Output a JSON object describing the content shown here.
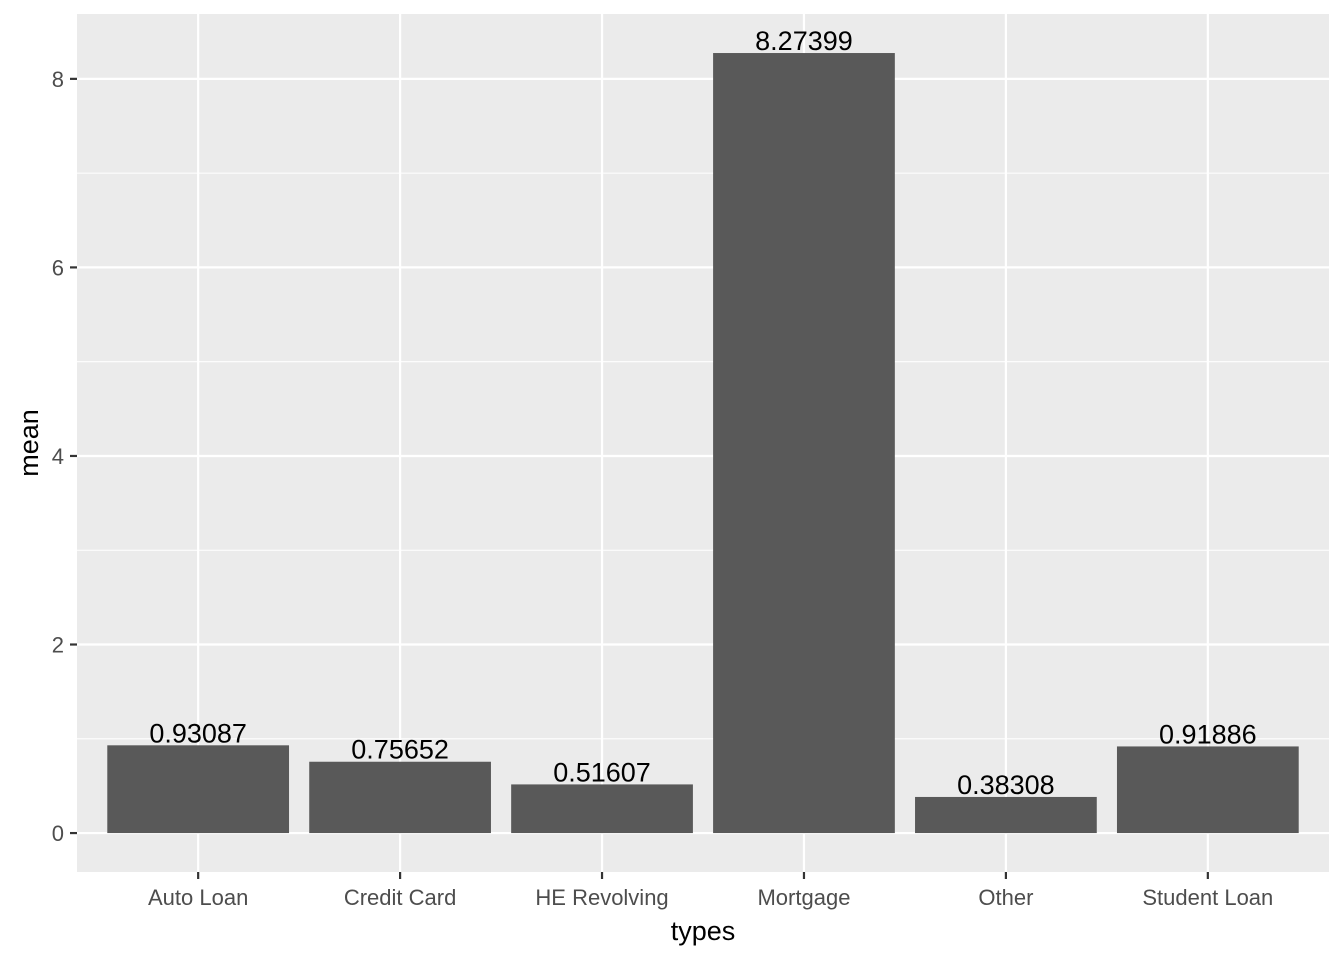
{
  "chart_data": {
    "type": "bar",
    "categories": [
      "Auto Loan",
      "Credit Card",
      "HE Revolving",
      "Mortgage",
      "Other",
      "Student Loan"
    ],
    "values": [
      0.93087,
      0.75652,
      0.51607,
      8.27399,
      0.38308,
      0.91886
    ],
    "value_labels": [
      "0.93087",
      "0.75652",
      "0.51607",
      "8.27399",
      "0.38308",
      "0.91886"
    ],
    "title": "",
    "xlabel": "types",
    "ylabel": "mean",
    "ylim": [
      -0.413,
      8.688
    ],
    "y_ticks": [
      0,
      2,
      4,
      6,
      8
    ],
    "y_tick_labels": [
      "0",
      "2",
      "4",
      "6",
      "8"
    ],
    "grid": true,
    "legend": "none",
    "colors": {
      "panel_background": "#ebebeb",
      "grid_major": "#ffffff",
      "bar_fill": "#595959",
      "tick_text": "#4d4d4d",
      "tick_mark": "#333333",
      "label_text": "#000000"
    }
  }
}
